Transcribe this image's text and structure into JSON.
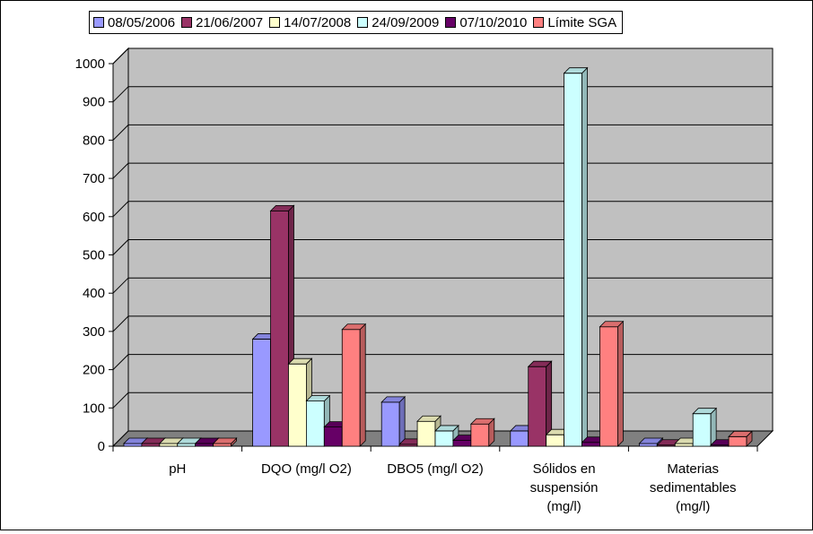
{
  "chart_data": {
    "type": "bar",
    "categories": [
      "pH",
      "DQO (mg/l O2)",
      "DBO5  (mg/l O2)",
      "Sólidos en suspensión (mg/l)",
      "Materias sedimentables (mg/l)"
    ],
    "category_lines": [
      [
        "pH"
      ],
      [
        "DQO (mg/l O2)"
      ],
      [
        "DBO5  (mg/l O2)"
      ],
      [
        "Sólidos en",
        "suspensión",
        "(mg/l)"
      ],
      [
        "Materias",
        "sedimentables",
        "(mg/l)"
      ]
    ],
    "series": [
      {
        "name": "08/05/2006",
        "color": "#9999ff",
        "values": [
          7,
          280,
          115,
          40,
          7
        ]
      },
      {
        "name": "21/06/2007",
        "color": "#993366",
        "values": [
          7,
          615,
          5,
          208,
          3
        ]
      },
      {
        "name": "14/07/2008",
        "color": "#ffffcc",
        "values": [
          7,
          215,
          65,
          30,
          7
        ]
      },
      {
        "name": "24/09/2009",
        "color": "#ccffff",
        "values": [
          7,
          118,
          40,
          975,
          85
        ]
      },
      {
        "name": "07/10/2010",
        "color": "#660066",
        "values": [
          7,
          50,
          15,
          10,
          3
        ]
      },
      {
        "name": "Límite SGA",
        "color": "#ff8080",
        "values": [
          7,
          305,
          58,
          312,
          25
        ]
      }
    ],
    "ylim": [
      0,
      1000
    ],
    "yticks": [
      0,
      100,
      200,
      300,
      400,
      500,
      600,
      700,
      800,
      900,
      1000
    ],
    "grid": true,
    "legend_position": "top",
    "wall_color": "#c0c0c0",
    "floor_color": "#808080"
  }
}
